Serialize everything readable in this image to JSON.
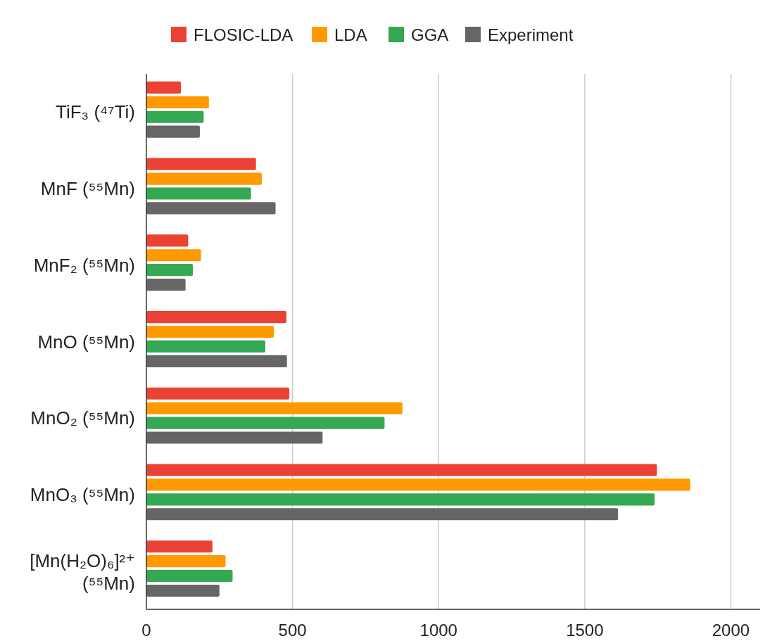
{
  "chart_data": {
    "type": "bar",
    "orientation": "horizontal",
    "categories": [
      "TiF₃ (⁴⁷Ti)",
      "MnF (⁵⁵Mn)",
      "MnF₂ (⁵⁵Mn)",
      "MnO (⁵⁵Mn)",
      "MnO₂ (⁵⁵Mn)",
      "MnO₃ (⁵⁵Mn)",
      "[Mn(H₂O)₆]²⁺ (⁵⁵Mn)"
    ],
    "series": [
      {
        "name": "FLOSIC-LDA",
        "color": "#ea4335",
        "values": [
          118,
          375,
          143,
          479,
          489,
          1747,
          226
        ]
      },
      {
        "name": "LDA",
        "color": "#ff9900",
        "values": [
          214,
          395,
          187,
          436,
          876,
          1861,
          271
        ]
      },
      {
        "name": "GGA",
        "color": "#34a853",
        "values": [
          196,
          358,
          159,
          407,
          815,
          1739,
          295
        ]
      },
      {
        "name": "Experiment",
        "color": "#666666",
        "values": [
          183,
          442,
          134,
          481,
          603,
          1614,
          250
        ]
      }
    ],
    "xlim": [
      0,
      2100
    ],
    "xticks": [
      0,
      500,
      1000,
      1500,
      2000
    ],
    "grid": "x",
    "legend": "top"
  }
}
